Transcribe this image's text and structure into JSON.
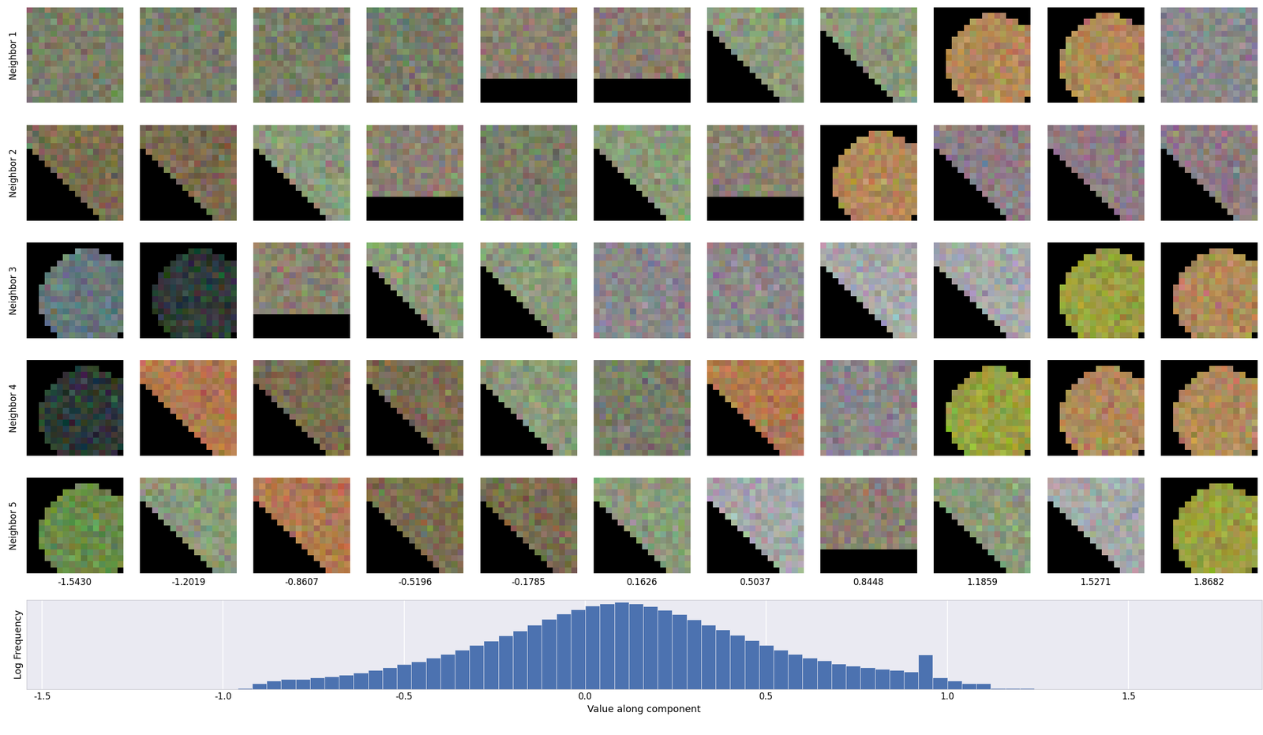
{
  "chart_data": {
    "type": "histogram",
    "row_labels": [
      "Neighbor 1",
      "Neighbor 2",
      "Neighbor 3",
      "Neighbor 4",
      "Neighbor 5"
    ],
    "column_values": [
      {
        "value": -1.543,
        "label": "-1.5430"
      },
      {
        "value": -1.2019,
        "label": "-1.2019"
      },
      {
        "value": -0.8607,
        "label": "-0.8607"
      },
      {
        "value": -0.5196,
        "label": "-0.5196"
      },
      {
        "value": -0.1785,
        "label": "-0.1785"
      },
      {
        "value": 0.1626,
        "label": "0.1626"
      },
      {
        "value": 0.5037,
        "label": "0.5037"
      },
      {
        "value": 0.8448,
        "label": "0.8448"
      },
      {
        "value": 1.1859,
        "label": "1.1859"
      },
      {
        "value": 1.5271,
        "label": "1.5271"
      },
      {
        "value": 1.8682,
        "label": "1.8682"
      }
    ],
    "x_label": "Value along component",
    "y_label": "Log Frequency",
    "bins": [
      -0.96,
      -0.92,
      -0.88,
      -0.84,
      -0.8,
      -0.76,
      -0.72,
      -0.68,
      -0.64,
      -0.6,
      -0.56,
      -0.52,
      -0.48,
      -0.44,
      -0.4,
      -0.36,
      -0.32,
      -0.28,
      -0.24,
      -0.2,
      -0.16,
      -0.12,
      -0.08,
      -0.04,
      0.0,
      0.04,
      0.08,
      0.12,
      0.16,
      0.2,
      0.24,
      0.28,
      0.32,
      0.36,
      0.4,
      0.44,
      0.48,
      0.52,
      0.56,
      0.6,
      0.64,
      0.68,
      0.72,
      0.76,
      0.8,
      0.84,
      0.88,
      0.92,
      0.96,
      1.0,
      1.04,
      1.08,
      1.12,
      1.16,
      1.2,
      1.24
    ],
    "counts": [
      1,
      2,
      3,
      4,
      4,
      5,
      6,
      8,
      11,
      16,
      25,
      40,
      63,
      112,
      200,
      398,
      794,
      1585,
      3548,
      7943,
      19953,
      50119,
      112202,
      223872,
      398107,
      562341,
      707946,
      562341,
      354813,
      199526,
      100000,
      44668,
      19953,
      8913,
      3981,
      1778,
      794,
      398,
      200,
      112,
      71,
      45,
      32,
      25,
      20,
      16,
      13,
      178,
      5,
      3,
      2,
      2,
      1,
      1,
      1
    ],
    "color": "#4c72b0",
    "log": "y",
    "xlim": [
      -1.543,
      1.8682
    ],
    "ylim": [
      0.8,
      1000000
    ],
    "xticks": [
      -1.5,
      -1.0,
      -0.5,
      0.0,
      0.5,
      1.0,
      1.5
    ],
    "yticks": [],
    "tick_labels": "x",
    "grid": true
  }
}
